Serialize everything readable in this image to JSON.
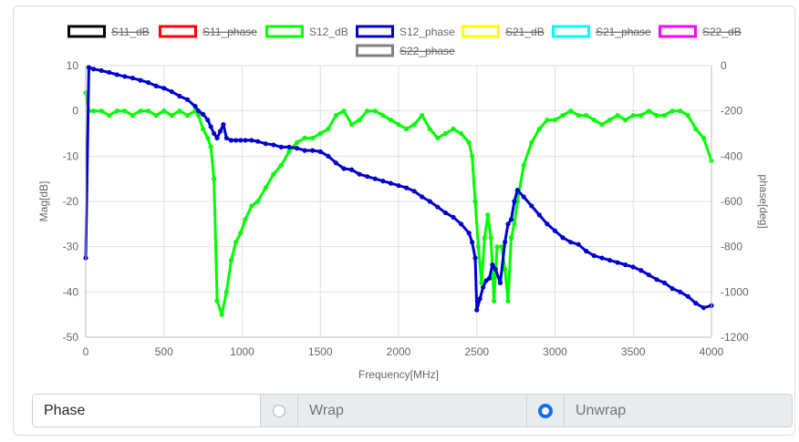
{
  "chart_data": {
    "type": "line",
    "xlabel": "Frequency[MHz]",
    "ylabel_left": "Mag[dB]",
    "ylabel_right": "phase[deg]",
    "xlim": [
      0,
      4000
    ],
    "ylim_left": [
      -50,
      10
    ],
    "ylim_right": [
      -1200,
      0
    ],
    "x_ticks": [
      0,
      500,
      1000,
      1500,
      2000,
      2500,
      3000,
      3500,
      4000
    ],
    "y_left_ticks": [
      10,
      0,
      -10,
      -20,
      -30,
      -40,
      -50
    ],
    "y_right_ticks": [
      0,
      -200,
      -400,
      -600,
      -800,
      -1000,
      -1200
    ],
    "grid": true,
    "legend_position": "top",
    "series": [
      {
        "name": "S11_dB",
        "color": "#000000",
        "hidden": true,
        "axis": "left",
        "points": []
      },
      {
        "name": "S11_phase",
        "color": "#ff0000",
        "hidden": true,
        "axis": "right",
        "points": []
      },
      {
        "name": "S12_dB",
        "color": "#00ff00",
        "hidden": false,
        "axis": "left",
        "points": [
          [
            0,
            4
          ],
          [
            20,
            0
          ],
          [
            50,
            0
          ],
          [
            100,
            0
          ],
          [
            150,
            -1
          ],
          [
            200,
            0
          ],
          [
            250,
            0
          ],
          [
            300,
            -1
          ],
          [
            350,
            0
          ],
          [
            400,
            0
          ],
          [
            450,
            -1
          ],
          [
            500,
            0
          ],
          [
            550,
            -1
          ],
          [
            600,
            0
          ],
          [
            650,
            -1
          ],
          [
            700,
            0
          ],
          [
            720,
            -1
          ],
          [
            750,
            -4
          ],
          [
            780,
            -6
          ],
          [
            800,
            -8
          ],
          [
            820,
            -15
          ],
          [
            840,
            -42
          ],
          [
            870,
            -45
          ],
          [
            900,
            -40
          ],
          [
            930,
            -33
          ],
          [
            960,
            -29
          ],
          [
            990,
            -27
          ],
          [
            1020,
            -24
          ],
          [
            1060,
            -21
          ],
          [
            1100,
            -20
          ],
          [
            1150,
            -17
          ],
          [
            1200,
            -14
          ],
          [
            1250,
            -12
          ],
          [
            1300,
            -9
          ],
          [
            1350,
            -7
          ],
          [
            1400,
            -6
          ],
          [
            1450,
            -6
          ],
          [
            1500,
            -5
          ],
          [
            1550,
            -4
          ],
          [
            1600,
            -1
          ],
          [
            1650,
            0
          ],
          [
            1700,
            -3
          ],
          [
            1750,
            -2
          ],
          [
            1800,
            0
          ],
          [
            1850,
            0
          ],
          [
            1900,
            -1
          ],
          [
            1950,
            -2
          ],
          [
            2000,
            -3
          ],
          [
            2050,
            -4
          ],
          [
            2100,
            -3
          ],
          [
            2150,
            -1
          ],
          [
            2200,
            -4
          ],
          [
            2250,
            -6
          ],
          [
            2300,
            -5
          ],
          [
            2350,
            -4
          ],
          [
            2400,
            -5
          ],
          [
            2450,
            -7
          ],
          [
            2470,
            -10
          ],
          [
            2490,
            -20
          ],
          [
            2510,
            -30
          ],
          [
            2530,
            -38
          ],
          [
            2550,
            -28
          ],
          [
            2570,
            -23
          ],
          [
            2590,
            -28
          ],
          [
            2610,
            -42
          ],
          [
            2630,
            -30
          ],
          [
            2660,
            -30
          ],
          [
            2680,
            -35
          ],
          [
            2700,
            -42
          ],
          [
            2720,
            -28
          ],
          [
            2740,
            -25
          ],
          [
            2760,
            -20
          ],
          [
            2800,
            -12
          ],
          [
            2850,
            -7
          ],
          [
            2900,
            -4
          ],
          [
            2950,
            -2
          ],
          [
            3000,
            -2
          ],
          [
            3050,
            -1
          ],
          [
            3100,
            0
          ],
          [
            3150,
            -1
          ],
          [
            3200,
            -1
          ],
          [
            3250,
            -2
          ],
          [
            3300,
            -3
          ],
          [
            3350,
            -2
          ],
          [
            3400,
            -1
          ],
          [
            3450,
            -2
          ],
          [
            3500,
            -1
          ],
          [
            3550,
            -1
          ],
          [
            3600,
            0
          ],
          [
            3650,
            -1
          ],
          [
            3700,
            -1
          ],
          [
            3750,
            0
          ],
          [
            3800,
            0
          ],
          [
            3850,
            -1
          ],
          [
            3900,
            -4
          ],
          [
            3950,
            -6
          ],
          [
            4000,
            -11
          ]
        ]
      },
      {
        "name": "S12_phase",
        "color": "#0000cc",
        "hidden": false,
        "axis": "right",
        "points": [
          [
            0,
            -850
          ],
          [
            20,
            -8
          ],
          [
            50,
            -15
          ],
          [
            100,
            -22
          ],
          [
            150,
            -30
          ],
          [
            200,
            -40
          ],
          [
            250,
            -48
          ],
          [
            300,
            -55
          ],
          [
            350,
            -65
          ],
          [
            400,
            -75
          ],
          [
            450,
            -90
          ],
          [
            500,
            -100
          ],
          [
            550,
            -115
          ],
          [
            600,
            -135
          ],
          [
            650,
            -150
          ],
          [
            700,
            -180
          ],
          [
            720,
            -200
          ],
          [
            750,
            -215
          ],
          [
            780,
            -240
          ],
          [
            800,
            -270
          ],
          [
            820,
            -300
          ],
          [
            840,
            -320
          ],
          [
            860,
            -290
          ],
          [
            880,
            -260
          ],
          [
            900,
            -320
          ],
          [
            930,
            -330
          ],
          [
            960,
            -330
          ],
          [
            990,
            -330
          ],
          [
            1020,
            -330
          ],
          [
            1060,
            -330
          ],
          [
            1100,
            -335
          ],
          [
            1150,
            -345
          ],
          [
            1200,
            -350
          ],
          [
            1250,
            -360
          ],
          [
            1300,
            -360
          ],
          [
            1350,
            -365
          ],
          [
            1400,
            -375
          ],
          [
            1450,
            -375
          ],
          [
            1500,
            -380
          ],
          [
            1550,
            -400
          ],
          [
            1600,
            -430
          ],
          [
            1650,
            -455
          ],
          [
            1700,
            -460
          ],
          [
            1750,
            -480
          ],
          [
            1800,
            -490
          ],
          [
            1850,
            -500
          ],
          [
            1900,
            -510
          ],
          [
            1950,
            -520
          ],
          [
            2000,
            -530
          ],
          [
            2050,
            -540
          ],
          [
            2100,
            -555
          ],
          [
            2150,
            -580
          ],
          [
            2200,
            -600
          ],
          [
            2250,
            -625
          ],
          [
            2300,
            -650
          ],
          [
            2350,
            -670
          ],
          [
            2400,
            -700
          ],
          [
            2450,
            -740
          ],
          [
            2470,
            -780
          ],
          [
            2490,
            -850
          ],
          [
            2500,
            -1080
          ],
          [
            2520,
            -1030
          ],
          [
            2540,
            -980
          ],
          [
            2560,
            -950
          ],
          [
            2580,
            -940
          ],
          [
            2600,
            -880
          ],
          [
            2620,
            -900
          ],
          [
            2650,
            -960
          ],
          [
            2680,
            -780
          ],
          [
            2700,
            -700
          ],
          [
            2720,
            -680
          ],
          [
            2740,
            -600
          ],
          [
            2760,
            -550
          ],
          [
            2800,
            -580
          ],
          [
            2850,
            -620
          ],
          [
            2900,
            -660
          ],
          [
            2950,
            -700
          ],
          [
            3000,
            -730
          ],
          [
            3050,
            -760
          ],
          [
            3100,
            -780
          ],
          [
            3150,
            -790
          ],
          [
            3200,
            -820
          ],
          [
            3250,
            -840
          ],
          [
            3300,
            -850
          ],
          [
            3350,
            -860
          ],
          [
            3400,
            -870
          ],
          [
            3450,
            -880
          ],
          [
            3500,
            -890
          ],
          [
            3550,
            -905
          ],
          [
            3600,
            -925
          ],
          [
            3650,
            -945
          ],
          [
            3700,
            -960
          ],
          [
            3750,
            -985
          ],
          [
            3800,
            -1000
          ],
          [
            3850,
            -1020
          ],
          [
            3900,
            -1050
          ],
          [
            3950,
            -1070
          ],
          [
            4000,
            -1060
          ]
        ]
      },
      {
        "name": "S21_dB",
        "color": "#ffff00",
        "hidden": true,
        "axis": "left",
        "points": []
      },
      {
        "name": "S21_phase",
        "color": "#00ffff",
        "hidden": true,
        "axis": "right",
        "points": []
      },
      {
        "name": "S22_dB",
        "color": "#ff00ff",
        "hidden": true,
        "axis": "left",
        "points": []
      },
      {
        "name": "S22_phase",
        "color": "#808080",
        "hidden": true,
        "axis": "right",
        "points": []
      }
    ]
  },
  "controls": {
    "label": "Phase",
    "options": [
      {
        "label": "Wrap",
        "checked": false
      },
      {
        "label": "Unwrap",
        "checked": true
      }
    ]
  }
}
